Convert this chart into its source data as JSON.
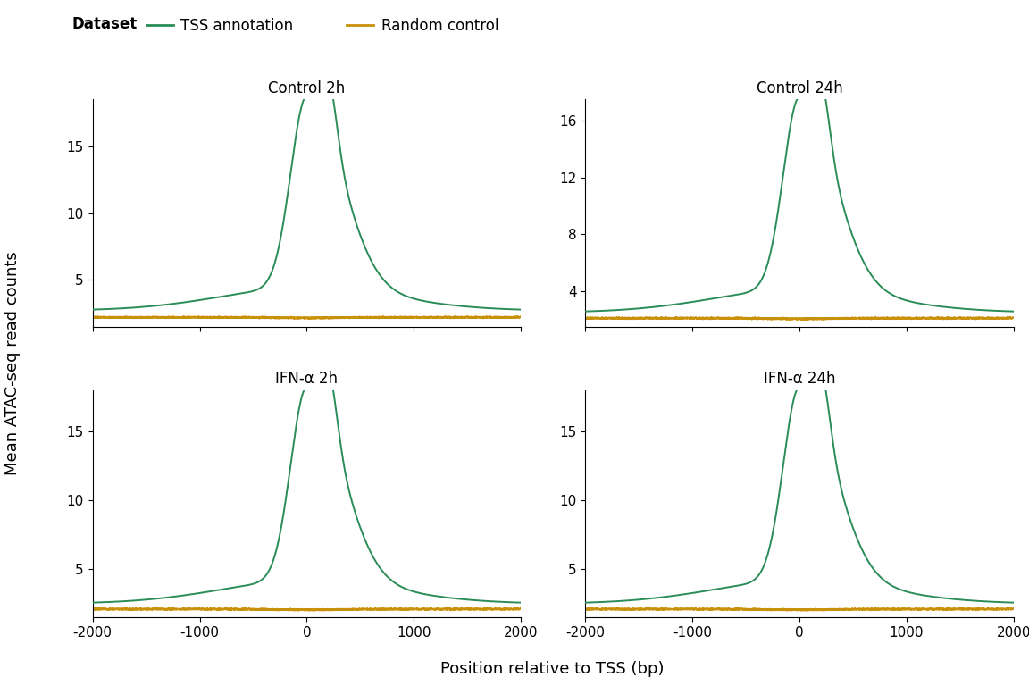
{
  "panels": [
    {
      "title": "Control 2h",
      "tss_peak": 17.0,
      "tss_base": 2.7,
      "rand_level": 2.2,
      "yticks": [
        5,
        10,
        15
      ],
      "ymin": 1.5,
      "ymax": 18.5
    },
    {
      "title": "Control 24h",
      "tss_peak": 16.0,
      "tss_base": 2.5,
      "rand_level": 2.1,
      "yticks": [
        4,
        8,
        12,
        16
      ],
      "ymin": 1.5,
      "ymax": 17.5
    },
    {
      "title": "IFN-α 2h",
      "tss_peak": 16.5,
      "tss_base": 2.5,
      "rand_level": 2.1,
      "yticks": [
        5,
        10,
        15
      ],
      "ymin": 1.5,
      "ymax": 18.0
    },
    {
      "title": "IFN-α 24h",
      "tss_peak": 16.5,
      "tss_base": 2.5,
      "rand_level": 2.1,
      "yticks": [
        5,
        10,
        15
      ],
      "ymin": 1.5,
      "ymax": 18.0
    }
  ],
  "tss_color": "#2a8c57",
  "rand_color": "#C9900A",
  "bg_color": "#ffffff",
  "strip_color": "#d3d3d3",
  "xlabel": "Position relative to TSS (bp)",
  "ylabel": "Mean ATAC-seq read counts",
  "legend_title": "Dataset",
  "legend_tss": "TSS annotation",
  "legend_rand": "Random control",
  "xmin": -2000,
  "xmax": 2000,
  "xticks": [
    -2000,
    -1000,
    0,
    1000,
    2000
  ]
}
